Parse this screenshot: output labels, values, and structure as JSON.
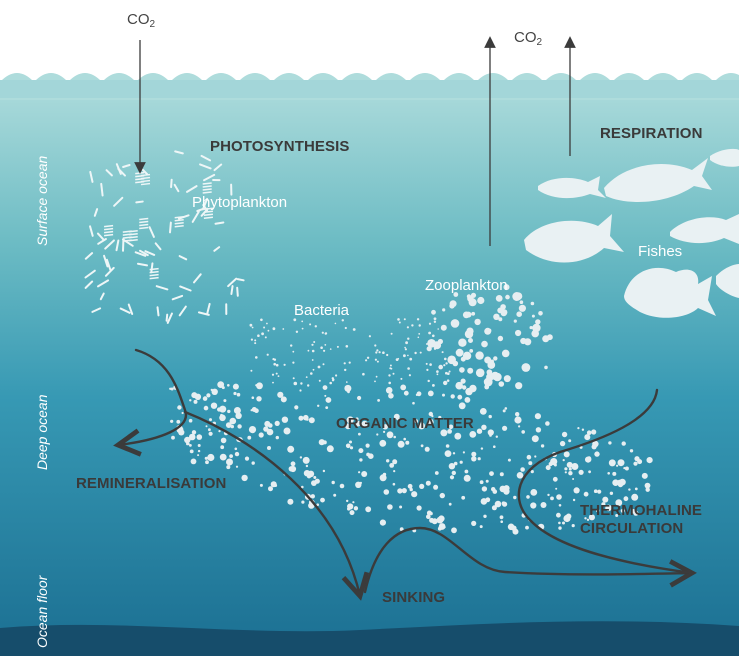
{
  "gases": {
    "co2_left": "CO",
    "co2_right": "CO",
    "sub": "2"
  },
  "processes": {
    "photosynthesis": "PHOTOSYNTHESIS",
    "respiration": "RESPIRATION",
    "organic_matter": "ORGANIC MATTER",
    "remineralisation": "REMINERALISATION",
    "thermohaline_1": "THERMOHALINE",
    "thermohaline_2": "CIRCULATION",
    "sinking": "SINKING"
  },
  "organisms": {
    "phytoplankton": "Phytoplankton",
    "bacteria": "Bacteria",
    "zooplankton": "Zooplankton",
    "fishes": "Fishes"
  },
  "zones": {
    "surface": "Surface ocean",
    "deep": "Deep ocean",
    "floor": "Ocean floor"
  },
  "colors": {
    "surface_top": "#a9dbdc",
    "surface_mid": "#5fb5c2",
    "deep": "#2f8fae",
    "floor": "#1c6d90",
    "seabed": "#174f6e",
    "arrow": "#3b3b3b",
    "particles": "#e8eef0"
  }
}
